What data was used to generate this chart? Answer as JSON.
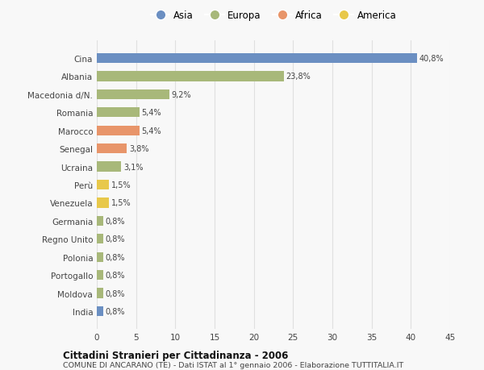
{
  "categories": [
    "India",
    "Moldova",
    "Portogallo",
    "Polonia",
    "Regno Unito",
    "Germania",
    "Venezuela",
    "Perù",
    "Ucraina",
    "Senegal",
    "Marocco",
    "Romania",
    "Macedonia d/N.",
    "Albania",
    "Cina"
  ],
  "values": [
    0.8,
    0.8,
    0.8,
    0.8,
    0.8,
    0.8,
    1.5,
    1.5,
    3.1,
    3.8,
    5.4,
    5.4,
    9.2,
    23.8,
    40.8
  ],
  "colors": [
    "#6b8fc2",
    "#a8b87a",
    "#a8b87a",
    "#a8b87a",
    "#a8b87a",
    "#a8b87a",
    "#e8c84a",
    "#e8c84a",
    "#a8b87a",
    "#e8956a",
    "#e8956a",
    "#a8b87a",
    "#a8b87a",
    "#a8b87a",
    "#6b8fc2"
  ],
  "labels": [
    "0,8%",
    "0,8%",
    "0,8%",
    "0,8%",
    "0,8%",
    "0,8%",
    "1,5%",
    "1,5%",
    "3,1%",
    "3,8%",
    "5,4%",
    "5,4%",
    "9,2%",
    "23,8%",
    "40,8%"
  ],
  "legend_entries": [
    {
      "label": "Asia",
      "color": "#6b8fc2"
    },
    {
      "label": "Europa",
      "color": "#a8b87a"
    },
    {
      "label": "Africa",
      "color": "#e8956a"
    },
    {
      "label": "America",
      "color": "#e8c84a"
    }
  ],
  "title1": "Cittadini Stranieri per Cittadinanza - 2006",
  "title2": "COMUNE DI ANCARANO (TE) - Dati ISTAT al 1° gennaio 2006 - Elaborazione TUTTITALIA.IT",
  "xlim": [
    0,
    45
  ],
  "xticks": [
    0,
    5,
    10,
    15,
    20,
    25,
    30,
    35,
    40,
    45
  ],
  "background_color": "#f8f8f8",
  "grid_color": "#e0e0e0"
}
